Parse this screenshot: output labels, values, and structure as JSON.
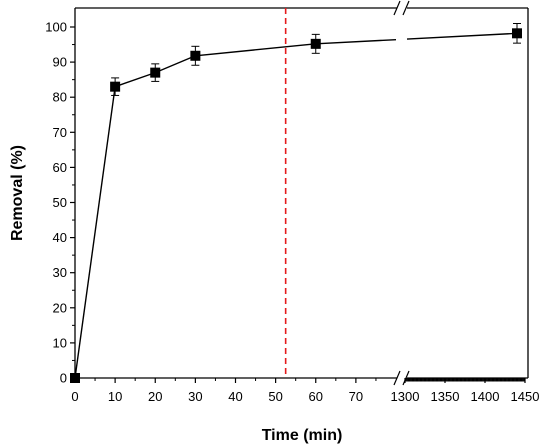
{
  "chart_data": {
    "type": "line",
    "xlabel": "Time (min)",
    "ylabel": "Removal (%)",
    "ylim": [
      0,
      105
    ],
    "y_ticks": [
      0,
      10,
      20,
      30,
      40,
      50,
      60,
      70,
      80,
      90,
      100
    ],
    "x_axis_segments": [
      {
        "range": [
          0,
          80
        ],
        "ticks": [
          0,
          10,
          20,
          30,
          40,
          50,
          60,
          70
        ]
      },
      {
        "range": [
          1300,
          1450
        ],
        "ticks": [
          1300,
          1350,
          1400,
          1450
        ]
      }
    ],
    "x_break": "//",
    "series": [
      {
        "marker": "square",
        "color": "#000000",
        "points": [
          {
            "x": 0,
            "y": 0
          },
          {
            "x": 10,
            "y": 83.0,
            "err": 2.5
          },
          {
            "x": 20,
            "y": 87.0,
            "err": 2.5
          },
          {
            "x": 30,
            "y": 91.8,
            "err": 2.7
          },
          {
            "x": 60,
            "y": 95.2,
            "err": 2.7
          },
          {
            "x": 1440,
            "y": 98.2,
            "err": 2.8
          }
        ]
      }
    ],
    "reference_line": {
      "x": 52.5,
      "color": "#e41a1c",
      "style": "dashed"
    },
    "grid": false
  }
}
